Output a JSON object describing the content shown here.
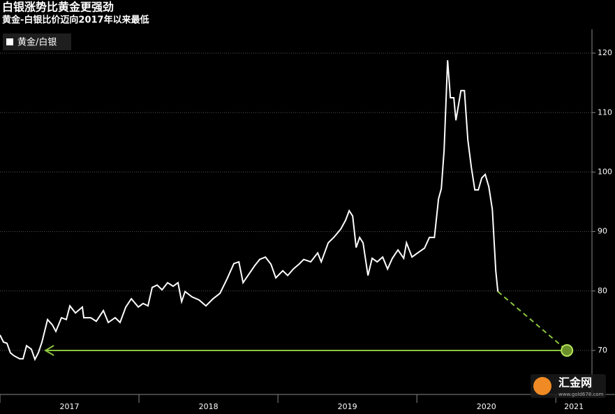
{
  "chart_data": {
    "type": "line",
    "title": "白银涨势比黄金更强劲",
    "subtitle": "黄金-白银比价迈向2017年以来最低",
    "series": [
      {
        "name": "黄金/白银",
        "color": "#ffffff",
        "x": [
          2017.0,
          2017.025,
          2017.05,
          2017.075,
          2017.101,
          2017.141,
          2017.166,
          2017.191,
          2017.226,
          2017.251,
          2017.276,
          2017.302,
          2017.342,
          2017.377,
          2017.402,
          2017.442,
          2017.477,
          2017.503,
          2017.543,
          2017.593,
          2017.603,
          2017.653,
          2017.693,
          2017.744,
          2017.779,
          2017.829,
          2017.864,
          2017.905,
          2017.945,
          2017.995,
          2018.03,
          2018.065,
          2018.095,
          2018.131,
          2018.166,
          2018.206,
          2018.246,
          2018.281,
          2018.307,
          2018.332,
          2018.382,
          2018.432,
          2018.482,
          2018.533,
          2018.583,
          2018.633,
          2018.683,
          2018.719,
          2018.749,
          2018.799,
          2018.834,
          2018.869,
          2018.91,
          2018.95,
          2018.985,
          2019.035,
          2019.07,
          2019.111,
          2019.151,
          2019.186,
          2019.236,
          2019.286,
          2019.312,
          2019.362,
          2019.402,
          2019.452,
          2019.487,
          2019.513,
          2019.538,
          2019.563,
          2019.588,
          2019.613,
          2019.648,
          2019.678,
          2019.714,
          2019.754,
          2019.789,
          2019.824,
          2019.864,
          2019.905,
          2019.925,
          2019.965,
          2020.005,
          2020.055,
          2020.09,
          2020.126,
          2020.156,
          2020.176,
          2020.196,
          2020.221,
          2020.241,
          2020.266,
          2020.281,
          2020.317,
          2020.342,
          2020.367,
          2020.392,
          2020.417,
          2020.442,
          2020.467,
          2020.492,
          2020.518,
          2020.543,
          2020.568,
          2020.583
        ],
        "values": [
          72.6,
          71.4,
          71.2,
          69.6,
          69.1,
          68.6,
          68.6,
          70.8,
          70.2,
          68.5,
          69.6,
          71.4,
          75.2,
          74.3,
          73.2,
          75.5,
          75.2,
          77.5,
          76.3,
          77.3,
          75.5,
          75.5,
          74.9,
          76.7,
          74.7,
          75.5,
          74.7,
          77.3,
          78.7,
          77.3,
          77.9,
          77.5,
          80.6,
          81.0,
          80.2,
          81.4,
          80.8,
          81.4,
          78.2,
          79.9,
          79.0,
          78.5,
          77.5,
          78.7,
          79.6,
          82.0,
          84.6,
          84.9,
          81.4,
          83.1,
          84.3,
          85.3,
          85.7,
          84.5,
          82.2,
          83.4,
          82.6,
          83.7,
          84.5,
          85.3,
          84.9,
          86.4,
          84.9,
          88.1,
          89.0,
          90.4,
          91.9,
          93.5,
          92.6,
          87.3,
          89.0,
          88.1,
          82.6,
          85.5,
          84.9,
          85.7,
          83.7,
          85.5,
          86.9,
          85.5,
          88.1,
          85.7,
          86.4,
          87.2,
          89.0,
          89.0,
          95.5,
          97.2,
          103.7,
          118.8,
          112.5,
          112.5,
          108.7,
          113.7,
          113.7,
          105.4,
          100.8,
          97.0,
          97.0,
          99.0,
          99.6,
          97.5,
          93.7,
          83.4,
          79.9
        ]
      }
    ],
    "projection": {
      "x": [
        2020.583,
        2021.08
      ],
      "values": [
        79.9,
        70
      ],
      "color": "#8dc63f"
    },
    "arrow": {
      "x": [
        2021.08,
        2017.327
      ],
      "values": [
        70,
        70
      ],
      "color": "#8dc63f"
    },
    "xlim": [
      2017,
      2021.26
    ],
    "xticks": [
      2017,
      2018,
      2019,
      2020,
      2021
    ],
    "ylim": [
      62.6,
      124
    ],
    "yticks": [
      70,
      80,
      90,
      100,
      110,
      120
    ],
    "grid": true,
    "watermark": {
      "brand": "汇金网",
      "url": "www.gold678.com"
    }
  }
}
